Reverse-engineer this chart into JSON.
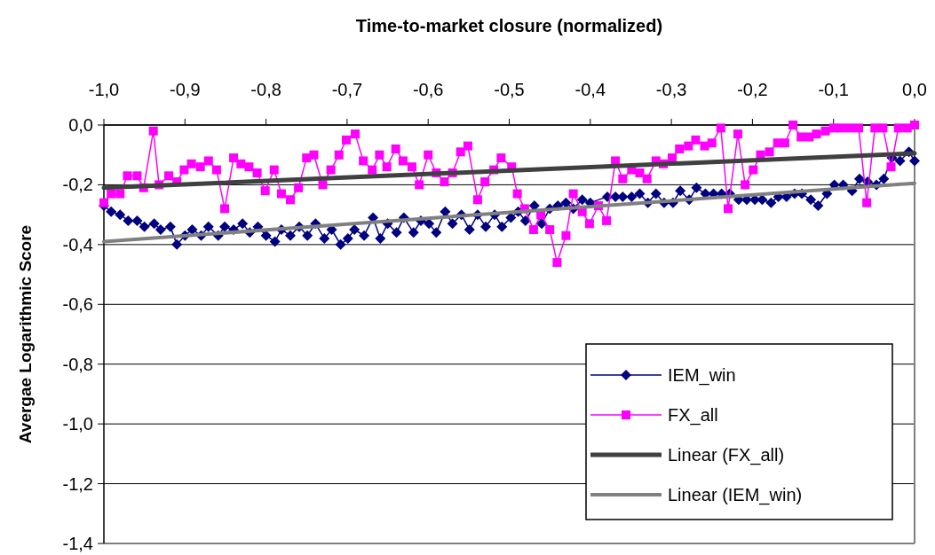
{
  "chart_data": {
    "type": "line",
    "xlabel": "Time-to-market closure (normalized)",
    "ylabel": "Avergae Logarithmic Score",
    "xlim": [
      -1.0,
      0.0
    ],
    "xticks": [
      {
        "value": -1.0,
        "label": "-1,0"
      },
      {
        "value": -0.9,
        "label": "-0,9"
      },
      {
        "value": -0.8,
        "label": "-0,8"
      },
      {
        "value": -0.7,
        "label": "-0,7"
      },
      {
        "value": -0.6,
        "label": "-0,6"
      },
      {
        "value": -0.5,
        "label": "-0,5"
      },
      {
        "value": -0.4,
        "label": "-0,4"
      },
      {
        "value": -0.3,
        "label": "-0,3"
      },
      {
        "value": -0.2,
        "label": "-0,2"
      },
      {
        "value": -0.1,
        "label": "-0,1"
      },
      {
        "value": 0.0,
        "label": "0,0"
      }
    ],
    "ylim": [
      -1.4,
      0.0
    ],
    "yticks": [
      {
        "value": 0.0,
        "label": "0,0"
      },
      {
        "value": -0.2,
        "label": "-0,2"
      },
      {
        "value": -0.4,
        "label": "-0,4"
      },
      {
        "value": -0.6,
        "label": "-0,6"
      },
      {
        "value": -0.8,
        "label": "-0,8"
      },
      {
        "value": -1.0,
        "label": "-1,0"
      },
      {
        "value": -1.2,
        "label": "-1,2"
      },
      {
        "value": -1.4,
        "label": "-1,4"
      }
    ],
    "grid": "y",
    "legend": "bottom right",
    "series": [
      {
        "name": "IEM_win",
        "color": "#000080",
        "marker": "diamond",
        "x": [
          -1.0,
          -0.991,
          -0.98,
          -0.97,
          -0.959,
          -0.95,
          -0.938,
          -0.93,
          -0.918,
          -0.91,
          -0.9,
          -0.891,
          -0.88,
          -0.871,
          -0.859,
          -0.851,
          -0.84,
          -0.829,
          -0.82,
          -0.81,
          -0.8,
          -0.789,
          -0.781,
          -0.77,
          -0.759,
          -0.749,
          -0.739,
          -0.728,
          -0.719,
          -0.708,
          -0.699,
          -0.691,
          -0.679,
          -0.668,
          -0.659,
          -0.65,
          -0.639,
          -0.63,
          -0.618,
          -0.609,
          -0.599,
          -0.59,
          -0.579,
          -0.57,
          -0.559,
          -0.549,
          -0.539,
          -0.529,
          -0.518,
          -0.509,
          -0.498,
          -0.489,
          -0.48,
          -0.469,
          -0.46,
          -0.45,
          -0.44,
          -0.43,
          -0.421,
          -0.41,
          -0.4,
          -0.389,
          -0.379,
          -0.369,
          -0.36,
          -0.349,
          -0.339,
          -0.329,
          -0.319,
          -0.309,
          -0.298,
          -0.289,
          -0.278,
          -0.269,
          -0.258,
          -0.248,
          -0.238,
          -0.228,
          -0.217,
          -0.207,
          -0.197,
          -0.188,
          -0.177,
          -0.168,
          -0.158,
          -0.148,
          -0.139,
          -0.128,
          -0.119,
          -0.108,
          -0.099,
          -0.088,
          -0.077,
          -0.068,
          -0.058,
          -0.047,
          -0.038,
          -0.028,
          -0.018,
          -0.007,
          0.0
        ],
        "values": [
          -0.27,
          -0.29,
          -0.3,
          -0.32,
          -0.32,
          -0.34,
          -0.33,
          -0.35,
          -0.34,
          -0.4,
          -0.37,
          -0.35,
          -0.37,
          -0.34,
          -0.37,
          -0.34,
          -0.35,
          -0.33,
          -0.36,
          -0.34,
          -0.37,
          -0.39,
          -0.35,
          -0.37,
          -0.34,
          -0.37,
          -0.33,
          -0.38,
          -0.35,
          -0.4,
          -0.38,
          -0.35,
          -0.37,
          -0.31,
          -0.38,
          -0.33,
          -0.36,
          -0.31,
          -0.36,
          -0.32,
          -0.33,
          -0.36,
          -0.29,
          -0.33,
          -0.3,
          -0.35,
          -0.3,
          -0.34,
          -0.3,
          -0.34,
          -0.31,
          -0.29,
          -0.32,
          -0.27,
          -0.33,
          -0.28,
          -0.27,
          -0.26,
          -0.28,
          -0.25,
          -0.26,
          null,
          -0.24,
          -0.24,
          -0.24,
          -0.24,
          -0.23,
          -0.26,
          -0.23,
          -0.26,
          -0.26,
          -0.22,
          -0.25,
          -0.21,
          -0.23,
          -0.23,
          -0.23,
          -0.23,
          -0.25,
          -0.25,
          -0.25,
          -0.25,
          -0.26,
          -0.24,
          -0.24,
          -0.23,
          -0.23,
          -0.25,
          -0.27,
          -0.23,
          -0.2,
          -0.2,
          -0.22,
          -0.18,
          -0.19,
          -0.2,
          -0.18,
          -0.11,
          -0.12,
          -0.09,
          -0.12
        ]
      },
      {
        "name": "FX_all",
        "color": "#ff00ff",
        "marker": "square",
        "x": [
          -1.0,
          -0.991,
          -0.98,
          -0.971,
          -0.959,
          -0.951,
          -0.939,
          -0.932,
          -0.92,
          -0.91,
          -0.901,
          -0.892,
          -0.881,
          -0.871,
          -0.861,
          -0.851,
          -0.84,
          -0.831,
          -0.821,
          -0.811,
          -0.801,
          -0.79,
          -0.781,
          -0.77,
          -0.76,
          -0.75,
          -0.741,
          -0.73,
          -0.72,
          -0.71,
          -0.701,
          -0.69,
          -0.68,
          -0.669,
          -0.66,
          -0.651,
          -0.64,
          -0.631,
          -0.62,
          -0.611,
          -0.6,
          -0.59,
          -0.58,
          -0.57,
          -0.56,
          -0.551,
          -0.539,
          -0.53,
          -0.519,
          -0.51,
          -0.497,
          -0.49,
          -0.481,
          -0.47,
          -0.461,
          -0.45,
          -0.441,
          -0.43,
          -0.421,
          -0.41,
          -0.401,
          -0.39,
          -0.38,
          -0.369,
          -0.36,
          -0.349,
          -0.339,
          -0.33,
          -0.319,
          -0.31,
          -0.299,
          -0.29,
          -0.279,
          -0.27,
          -0.259,
          -0.25,
          -0.239,
          -0.23,
          -0.218,
          -0.209,
          -0.199,
          -0.19,
          -0.179,
          -0.169,
          -0.16,
          -0.15,
          -0.14,
          -0.13,
          -0.121,
          -0.11,
          -0.1,
          -0.091,
          -0.08,
          -0.069,
          -0.059,
          -0.049,
          -0.039,
          -0.029,
          -0.02,
          -0.009,
          0.0
        ],
        "values": [
          -0.26,
          -0.23,
          -0.23,
          -0.17,
          -0.17,
          -0.21,
          -0.02,
          -0.2,
          -0.17,
          -0.19,
          -0.15,
          -0.13,
          -0.14,
          -0.12,
          -0.15,
          -0.28,
          -0.11,
          -0.13,
          -0.14,
          -0.16,
          -0.22,
          -0.15,
          -0.23,
          -0.25,
          -0.21,
          -0.11,
          -0.1,
          -0.2,
          -0.15,
          -0.1,
          -0.05,
          -0.03,
          -0.12,
          -0.15,
          -0.1,
          -0.14,
          -0.08,
          -0.12,
          -0.14,
          -0.2,
          -0.1,
          -0.16,
          -0.19,
          -0.16,
          -0.09,
          -0.07,
          -0.25,
          -0.19,
          -0.15,
          -0.11,
          -0.14,
          -0.23,
          -0.28,
          -0.35,
          -0.3,
          -0.35,
          -0.46,
          -0.37,
          -0.23,
          -0.29,
          -0.33,
          -0.27,
          -0.32,
          -0.12,
          -0.18,
          -0.15,
          -0.16,
          -0.18,
          -0.12,
          -0.13,
          -0.11,
          -0.08,
          -0.07,
          -0.05,
          -0.07,
          -0.06,
          -0.01,
          -0.28,
          -0.03,
          -0.2,
          -0.15,
          -0.1,
          -0.09,
          -0.06,
          -0.06,
          0.0,
          -0.04,
          -0.04,
          -0.03,
          -0.02,
          -0.01,
          -0.01,
          -0.01,
          -0.01,
          -0.26,
          -0.01,
          -0.01,
          -0.14,
          -0.01,
          -0.01,
          0.0
        ]
      },
      {
        "name": "Linear (FX_all)",
        "color": "#404040",
        "type": "line",
        "marker": "none",
        "x": [
          -1.0,
          0.0
        ],
        "values": [
          -0.21,
          -0.095
        ]
      },
      {
        "name": "Linear (IEM_win)",
        "color": "#808080",
        "type": "line",
        "marker": "none",
        "x": [
          -1.0,
          0.0
        ],
        "values": [
          -0.39,
          -0.195
        ]
      }
    ]
  }
}
